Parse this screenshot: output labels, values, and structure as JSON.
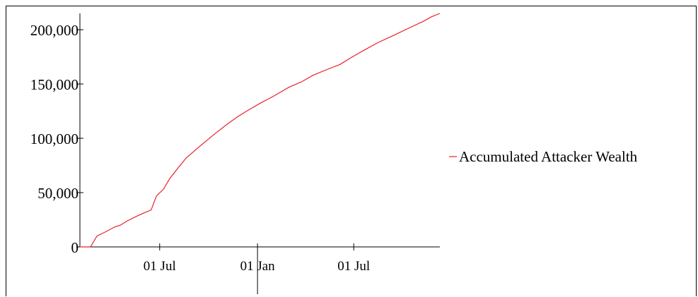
{
  "chart_data": {
    "type": "line",
    "title": "",
    "xlabel": "",
    "ylabel": "",
    "ylim": [
      0,
      215000
    ],
    "y_ticks": [
      0,
      50000,
      100000,
      150000,
      200000
    ],
    "y_tick_labels": [
      "0",
      "50,000",
      "100,000",
      "150,000",
      "200,000"
    ],
    "x_tick_labels": [
      "01 Jul",
      "01 Jan",
      "01 Jul"
    ],
    "x_ticks": [
      "2021-07-01",
      "2022-01-01",
      "2022-07-01"
    ],
    "xlim": [
      "2021-02-01",
      "2022-12-10"
    ],
    "grid": false,
    "legend_position": "right",
    "series_color": "#e8202a",
    "series": [
      {
        "name": "Accumulated Attacker Wealth",
        "x": [
          "2021-02-01",
          "2021-02-21",
          "2021-03-05",
          "2021-03-22",
          "2021-04-08",
          "2021-04-18",
          "2021-05-01",
          "2021-05-20",
          "2021-06-05",
          "2021-06-15",
          "2021-06-25",
          "2021-07-08",
          "2021-07-20",
          "2021-08-05",
          "2021-08-20",
          "2021-09-08",
          "2021-09-25",
          "2021-10-15",
          "2021-11-05",
          "2021-11-25",
          "2021-12-15",
          "2022-01-05",
          "2022-02-01",
          "2022-03-01",
          "2022-03-25",
          "2022-04-15",
          "2022-05-15",
          "2022-06-05",
          "2022-06-25",
          "2022-07-20",
          "2022-08-15",
          "2022-09-15",
          "2022-10-15",
          "2022-11-10",
          "2022-11-25",
          "2022-12-10"
        ],
        "y": [
          0,
          0,
          10000,
          14000,
          18500,
          20000,
          24000,
          28500,
          32000,
          34000,
          47000,
          53000,
          63000,
          73000,
          82000,
          90000,
          97000,
          105000,
          113000,
          120000,
          126000,
          132000,
          139000,
          147000,
          152000,
          158000,
          164000,
          168000,
          174000,
          181000,
          188000,
          195000,
          202000,
          208000,
          212000,
          215000
        ]
      }
    ]
  }
}
